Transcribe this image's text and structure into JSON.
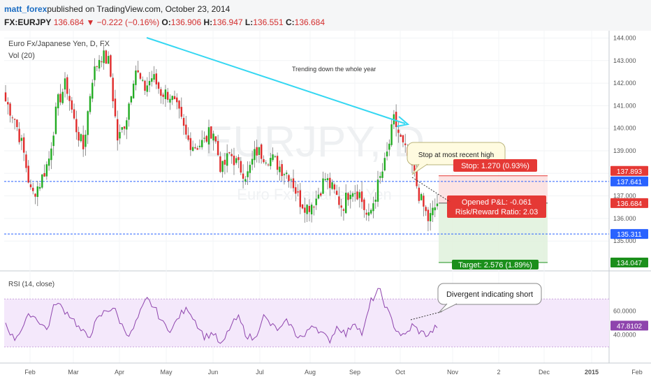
{
  "header": {
    "user": "matt_forex",
    "published": "published on TradingView.com, October 23, 2014",
    "symbol": "FX:EURJPY",
    "last": "136.684",
    "arrow": "▼",
    "change": "−0.222 (−0.16%)",
    "o_label": "O:",
    "o_val": "136.906",
    "h_label": "H:",
    "h_val": "136.947",
    "l_label": "L:",
    "l_val": "136.551",
    "c_label": "C:",
    "c_val": "136.684"
  },
  "chart_data": {
    "type": "candlestick",
    "title": "Euro Fx/Japanese Yen, D, FX",
    "volume_label": "Vol (20)",
    "watermark": "EURJPY, D",
    "watermark_sub": "Euro Fx/Japanese Yen",
    "price_ylim": [
      133.8,
      144.2
    ],
    "price_ticks": [
      "144.000",
      "143.000",
      "142.000",
      "141.000",
      "140.000",
      "139.000",
      "138.000",
      "137.000",
      "136.000",
      "135.000"
    ],
    "x_labels": [
      "Feb",
      "Mar",
      "Apr",
      "May",
      "Jun",
      "Jul",
      "Aug",
      "Sep",
      "Oct",
      "Nov",
      "2",
      "Dec",
      "2015",
      "Feb"
    ],
    "ohlc_anchor_closes": [
      141.2,
      140.5,
      139.1,
      137.0,
      137.6,
      138.6,
      141.1,
      142.0,
      140.2,
      139.1,
      142.2,
      143.3,
      142.9,
      139.4,
      140.5,
      142.7,
      141.7,
      142.3,
      141.6,
      141.5,
      140.7,
      139.5,
      139.2,
      139.4,
      140.0,
      138.1,
      138.9,
      138.3,
      137.9,
      139.0,
      138.8,
      138.6,
      138.2,
      137.9,
      136.8,
      136.5,
      136.9,
      137.8,
      137.2,
      136.5,
      137.4,
      137.1,
      135.9,
      137.3,
      138.5,
      140.4,
      139.2,
      138.4,
      136.9,
      135.9,
      136.7
    ],
    "candle_count": 190,
    "series_colors": {
      "up": "#22ab22",
      "down": "#e02b2b"
    },
    "price_labels": [
      {
        "text": "137.893",
        "bg": "#e53935"
      },
      {
        "text": "137.641",
        "bg": "#2962ff"
      },
      {
        "text": "136.684",
        "bg": "#e53935"
      },
      {
        "text": "135.311",
        "bg": "#2962ff"
      },
      {
        "text": "134.047",
        "bg": "#1b8f1b"
      }
    ],
    "levels": {
      "upper_line": 137.641,
      "lower_line": 135.311,
      "stop": 137.893,
      "entry": 136.684,
      "target": 134.047
    },
    "annotations": {
      "trend_text": "Trending down the whole year",
      "stop_callout": "Stop at most recent high",
      "stop_label": "Stop: 1.270 (0.93%)",
      "pl_label": "Opened P&L: -0.061",
      "rr_label": "Risk/Reward Ratio: 2.03",
      "target_label": "Target: 2.576 (1.89%)",
      "divergent_callout": "Divergent indicating short"
    },
    "rsi": {
      "label": "RSI (14, close)",
      "ticks": [
        "60.0000",
        "40.0000"
      ],
      "current": "47.8102",
      "ylim": [
        20,
        90
      ],
      "anchor_values": [
        50,
        36,
        46,
        58,
        52,
        44,
        68,
        61,
        55,
        44,
        38,
        52,
        60,
        63,
        48,
        39,
        55,
        70,
        62,
        49,
        44,
        57,
        62,
        50,
        38,
        42,
        30,
        46,
        55,
        40,
        36,
        56,
        48,
        44,
        52,
        40,
        38,
        50,
        42,
        35,
        48,
        40,
        52,
        40,
        68,
        78,
        60,
        45,
        38,
        48,
        42,
        40,
        47.8
      ],
      "color": "#8e44ad"
    }
  }
}
